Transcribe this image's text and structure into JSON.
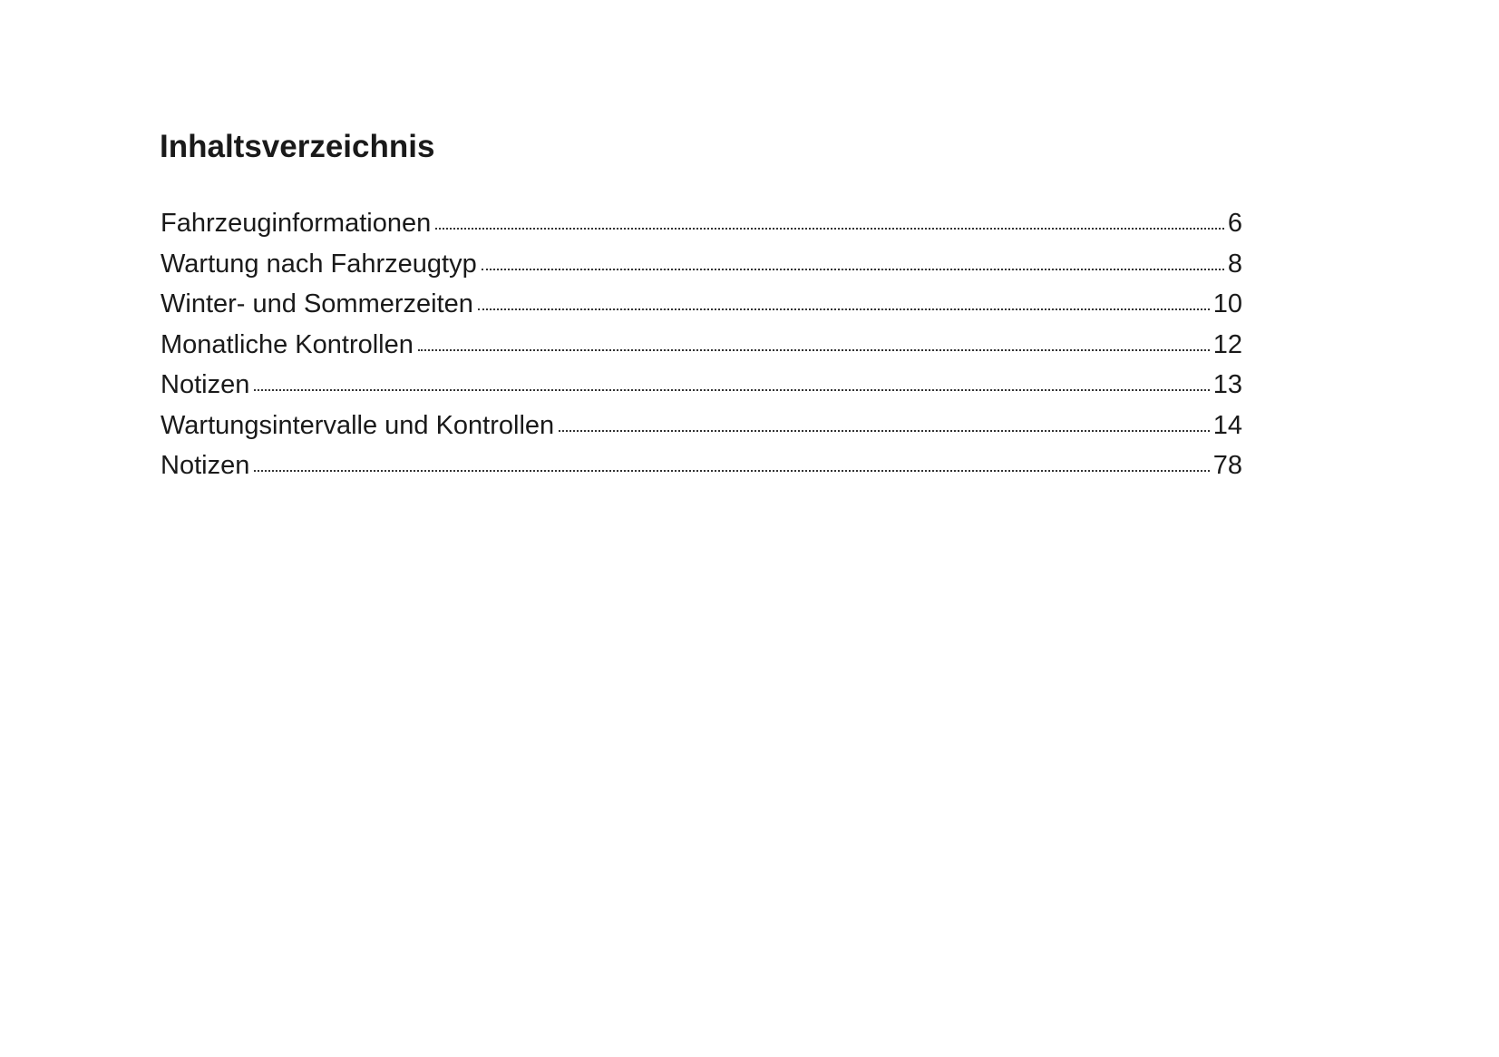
{
  "title": "Inhaltsverzeichnis",
  "entries": [
    {
      "label": "Fahrzeuginformationen",
      "page": "6"
    },
    {
      "label": "Wartung nach Fahrzeugtyp",
      "page": "8"
    },
    {
      "label": "Winter- und Sommerzeiten",
      "page": "10"
    },
    {
      "label": "Monatliche Kontrollen",
      "page": "12"
    },
    {
      "label": "Notizen",
      "page": "13"
    },
    {
      "label": "Wartungsintervalle und Kontrollen",
      "page": "14"
    },
    {
      "label": "Notizen",
      "page": "78"
    }
  ]
}
